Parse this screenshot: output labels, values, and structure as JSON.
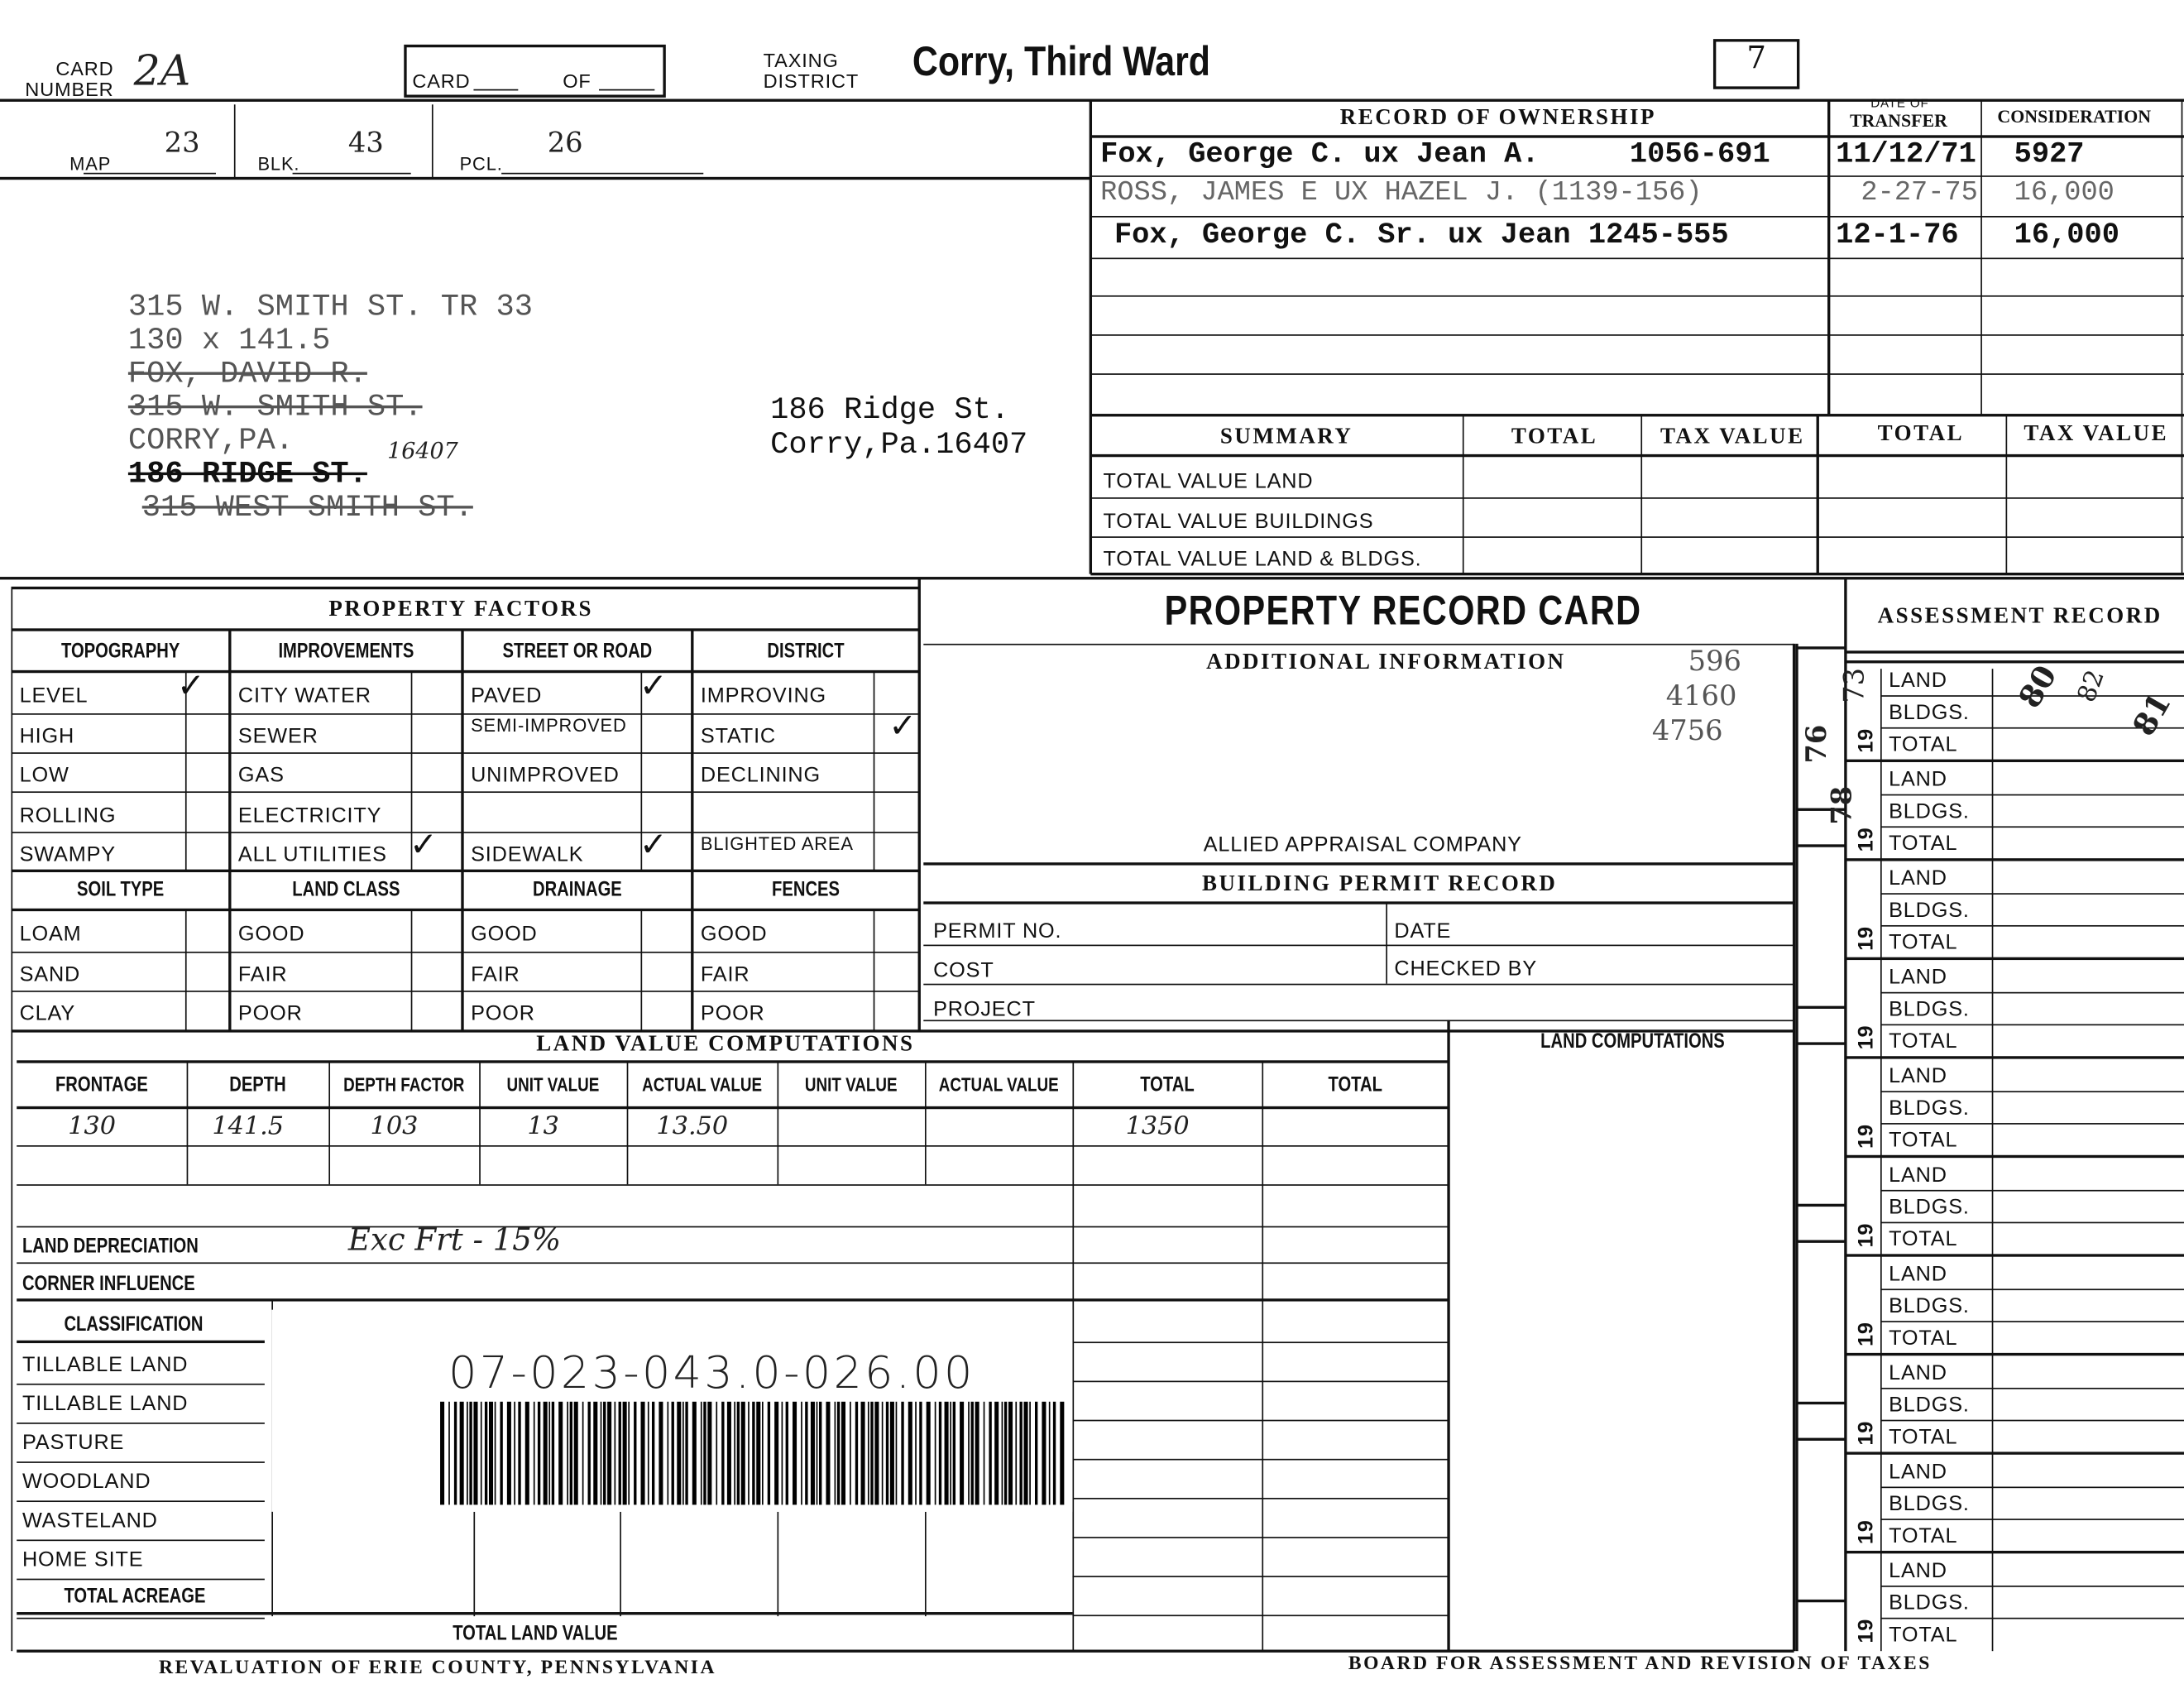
{
  "header": {
    "card_number_label": "CARD\nNUMBER",
    "card_number_value": "2A",
    "card_label": "CARD",
    "of_label": "OF",
    "taxing_district_label": "TAXING\nDISTRICT",
    "taxing_district_value": "Corry, Third Ward",
    "box_number": "7",
    "map_label": "MAP",
    "map_value": "23",
    "blk_label": "BLK.",
    "blk_value": "43",
    "pcl_label": "PCL.",
    "pcl_value": "26"
  },
  "property_address": {
    "lines": [
      {
        "text": "315 W. SMITH ST. TR 33",
        "struck": false
      },
      {
        "text": "130 x 141.5",
        "struck": false
      },
      {
        "text": "FOX, DAVID R.",
        "struck": true
      },
      {
        "text": "315 W. SMITH ST.",
        "struck": true
      },
      {
        "text": "CORRY,PA.",
        "struck": false
      },
      {
        "text": "186 RIDGE ST.",
        "struck": true
      },
      {
        "text": "315 WEST SMITH ST.",
        "struck": true
      }
    ],
    "handwritten_zip": "16407",
    "mailing_line1": "186 Ridge St.",
    "mailing_line2": "Corry,Pa.16407"
  },
  "ownership": {
    "title": "RECORD OF OWNERSHIP",
    "date_header_small": "DATE OF",
    "date_header": "TRANSFER",
    "consideration_header": "CONSIDERATION",
    "rows": [
      {
        "owner": "Fox, George C. ux Jean A.",
        "deed": "1056-691",
        "date": "11/12/71",
        "consideration": "5927"
      },
      {
        "owner": "ROSS, JAMES E UX HAZEL J. (1139-156)",
        "deed": "",
        "date": "2-27-75",
        "consideration": "16,000"
      },
      {
        "owner": "Fox, George C. Sr. ux Jean 1245-555",
        "deed": "",
        "date": "12-1-76",
        "consideration": "16,000"
      }
    ]
  },
  "summary": {
    "title": "SUMMARY",
    "total": "TOTAL",
    "tax_value": "TAX VALUE",
    "rows": [
      "TOTAL VALUE LAND",
      "TOTAL VALUE BUILDINGS",
      "TOTAL VALUE LAND & BLDGS."
    ]
  },
  "property_factors": {
    "title": "PROPERTY FACTORS",
    "columns": [
      {
        "header": "TOPOGRAPHY",
        "items": [
          "LEVEL",
          "HIGH",
          "LOW",
          "ROLLING",
          "SWAMPY"
        ],
        "checked": [
          0
        ]
      },
      {
        "header": "IMPROVEMENTS",
        "items": [
          "CITY WATER",
          "SEWER",
          "GAS",
          "ELECTRICITY",
          "ALL UTILITIES"
        ],
        "checked": [
          4
        ]
      },
      {
        "header": "STREET OR ROAD",
        "items": [
          "PAVED",
          "SEMI-IMPROVED",
          "UNIMPROVED",
          "",
          "SIDEWALK"
        ],
        "checked": [
          0,
          4
        ]
      },
      {
        "header": "DISTRICT",
        "items": [
          "IMPROVING",
          "STATIC",
          "DECLINING",
          "",
          "BLIGHTED AREA"
        ],
        "checked": [
          1
        ]
      }
    ],
    "columns2": [
      {
        "header": "SOIL TYPE",
        "items": [
          "LOAM",
          "SAND",
          "CLAY"
        ]
      },
      {
        "header": "LAND CLASS",
        "items": [
          "GOOD",
          "FAIR",
          "POOR"
        ]
      },
      {
        "header": "DRAINAGE",
        "items": [
          "GOOD",
          "FAIR",
          "POOR"
        ]
      },
      {
        "header": "FENCES",
        "items": [
          "GOOD",
          "FAIR",
          "POOR"
        ]
      }
    ]
  },
  "center": {
    "title": "PROPERTY RECORD CARD",
    "additional_info": "ADDITIONAL INFORMATION",
    "handwritten_values": [
      "596",
      "4160",
      "4756"
    ],
    "appraiser": "ALLIED APPRAISAL COMPANY",
    "permit_title": "BUILDING PERMIT RECORD",
    "permit_no": "PERMIT NO.",
    "date": "DATE",
    "cost": "COST",
    "checked_by": "CHECKED BY",
    "project": "PROJECT"
  },
  "assessment": {
    "title": "ASSESSMENT RECORD",
    "year_prefix": "19",
    "labels": [
      "LAND",
      "BLDGS.",
      "TOTAL"
    ],
    "group_count": 10,
    "handwritten_years": [
      "76",
      "73",
      "78",
      "80",
      "81",
      "82"
    ]
  },
  "land_value": {
    "title": "LAND VALUE COMPUTATIONS",
    "headers": [
      "FRONTAGE",
      "DEPTH",
      "DEPTH FACTOR",
      "UNIT VALUE",
      "ACTUAL VALUE",
      "UNIT VALUE",
      "ACTUAL VALUE",
      "TOTAL",
      "TOTAL"
    ],
    "row": [
      "130",
      "141.5",
      "103",
      "13",
      "13.50",
      "",
      "",
      "1350",
      ""
    ],
    "land_depreciation": "LAND DEPRECIATION",
    "depreciation_note": "Exc Frt - 15%",
    "corner_influence": "CORNER INFLUENCE",
    "classification": "CLASSIFICATION",
    "classes": [
      "TILLABLE LAND",
      "TILLABLE LAND",
      "PASTURE",
      "WOODLAND",
      "WASTELAND",
      "HOME SITE"
    ],
    "total_acreage": "TOTAL ACREAGE",
    "total_land_value": "TOTAL LAND VALUE",
    "land_computations": "LAND COMPUTATIONS"
  },
  "parcel_number": "07-023-043.0-026.00",
  "footer": {
    "left": "REVALUATION OF ERIE COUNTY, PENNSYLVANIA",
    "right": "BOARD FOR ASSESSMENT AND REVISION OF TAXES"
  }
}
